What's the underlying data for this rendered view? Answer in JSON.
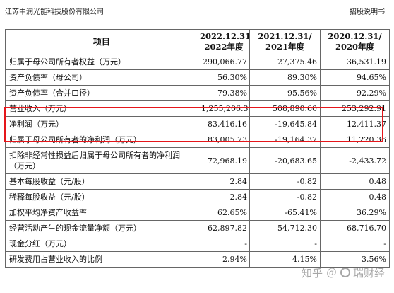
{
  "header": {
    "company": "江苏中润光能科技股份有限公司",
    "doc_type": "招股说明书"
  },
  "table": {
    "columns": [
      {
        "line1": "项目",
        "line2": ""
      },
      {
        "line1": "2022.12.31/",
        "line2": "2022年度"
      },
      {
        "line1": "2021.12.31/",
        "line2": "2021年度"
      },
      {
        "line1": "2020.12.31/",
        "line2": "2020年度"
      }
    ],
    "rows": [
      {
        "label": "归属于母公司所有者权益（万元）",
        "v2022": "290,066.77",
        "v2021": "27,375.46",
        "v2020": "36,531.19"
      },
      {
        "label": "资产负债率（母公司）",
        "v2022": "56.30%",
        "v2021": "89.30%",
        "v2020": "94.65%"
      },
      {
        "label": "资产负债率（合并口径）",
        "v2022": "79.38%",
        "v2021": "95.56%",
        "v2020": "92.29%"
      },
      {
        "label": "营业收入（万元）",
        "v2022": "1,255,206.39",
        "v2021": "508,890.60",
        "v2020": "253,292.91"
      },
      {
        "label": "净利润（万元）",
        "v2022": "83,416.16",
        "v2021": "-19,645.84",
        "v2020": "12,411.37"
      },
      {
        "label": "归属于母公司所有者的净利润（万元）",
        "v2022": "83,005.73",
        "v2021": "-19,164.37",
        "v2020": "11,220.36"
      },
      {
        "label": "扣除非经常性损益后归属于母公司所有者的净利润（万元）",
        "v2022": "72,968.19",
        "v2021": "-20,683.65",
        "v2020": "-2,433.72"
      },
      {
        "label": "基本每股收益（元/股）",
        "v2022": "2.84",
        "v2021": "-0.82",
        "v2020": "0.48"
      },
      {
        "label": "稀释每股收益（元/股）",
        "v2022": "2.84",
        "v2021": "-0.82",
        "v2020": "0.48"
      },
      {
        "label": "加权平均净资产收益率",
        "v2022": "62.65%",
        "v2021": "-65.41%",
        "v2020": "36.29%"
      },
      {
        "label": "经营活动产生的现金流量净额（万元）",
        "v2022": "62,897.82",
        "v2021": "54,712.30",
        "v2020": "68,716.70"
      },
      {
        "label": "现金分红（万元）",
        "v2022": "-",
        "v2021": "-",
        "v2020": "-"
      },
      {
        "label": "研发费用占营业收入的比例",
        "v2022": "2.94%",
        "v2021": "4.15%",
        "v2020": "3.56%"
      }
    ]
  },
  "highlight": {
    "color": "#e5161b"
  },
  "watermark": {
    "site": "知乎",
    "separator": "＠",
    "author": "瑞财经"
  }
}
